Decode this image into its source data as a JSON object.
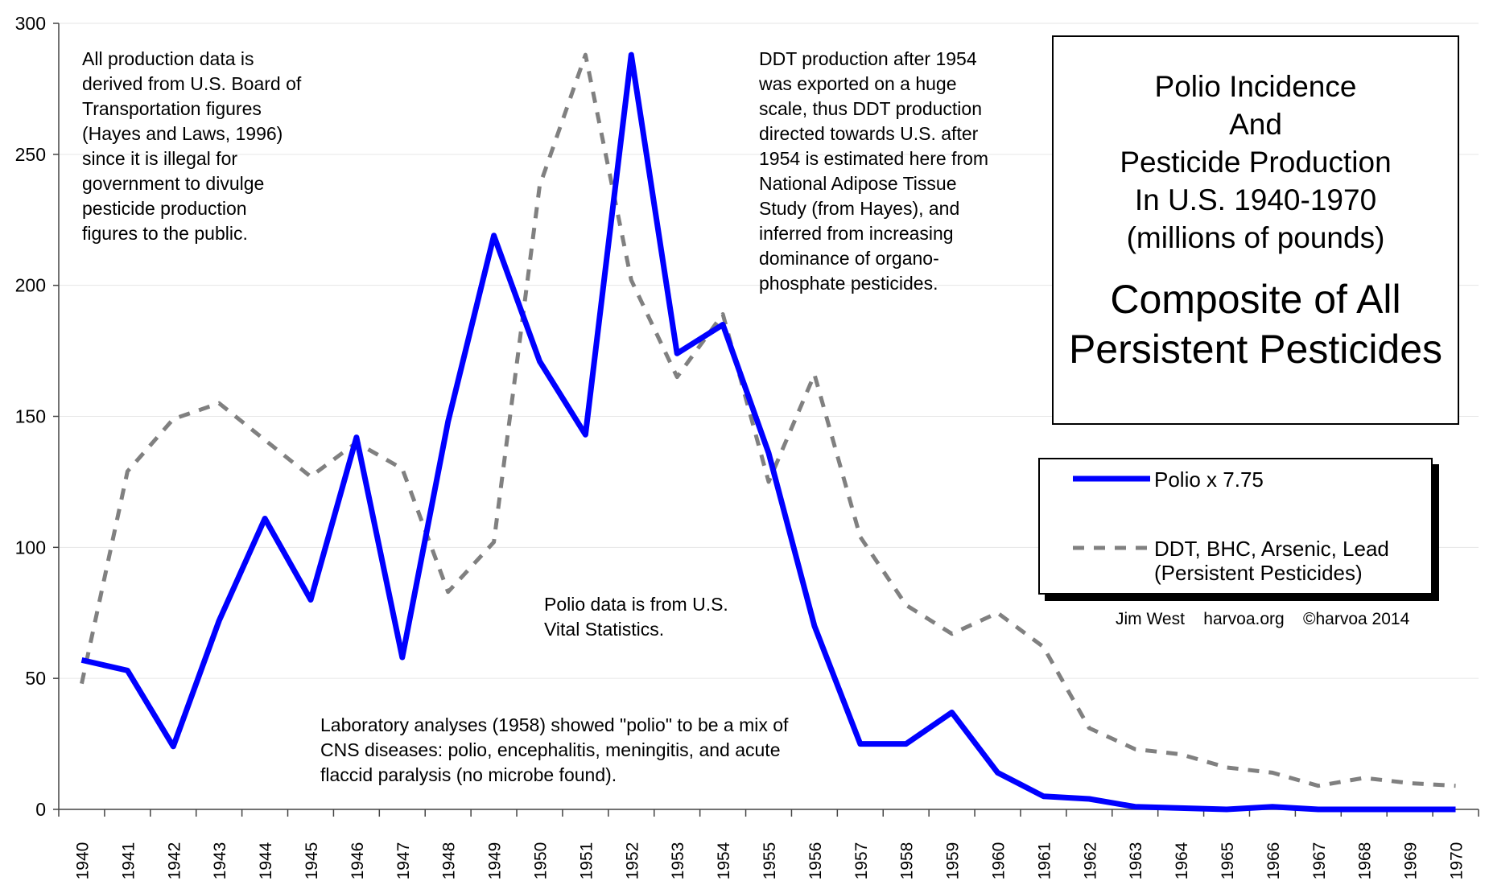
{
  "chart_data": {
    "type": "line",
    "title_lines": [
      "Polio Incidence",
      "And",
      "Pesticide Production",
      "In U.S. 1940-1970",
      "(millions of pounds)"
    ],
    "subtitle_lines": [
      "Composite of All",
      "Persistent Pesticides"
    ],
    "ylim": [
      0,
      300
    ],
    "yticks": [
      "0",
      "50",
      "100",
      "150",
      "200",
      "250",
      "300"
    ],
    "grid": "horizontal",
    "categories": [
      "1940",
      "1941",
      "1942",
      "1943",
      "1944",
      "1945",
      "1946",
      "1947",
      "1948",
      "1949",
      "1950",
      "1951",
      "1952",
      "1953",
      "1954",
      "1955",
      "1956",
      "1957",
      "1958",
      "1959",
      "1960",
      "1961",
      "1962",
      "1963",
      "1964",
      "1965",
      "1966",
      "1967",
      "1968",
      "1969",
      "1970"
    ],
    "series": [
      {
        "name": "Polio x 7.75",
        "style": "solid",
        "color": "#0000ff",
        "values": [
          57,
          53,
          24,
          72,
          111,
          80,
          142,
          58,
          148,
          219,
          171,
          143,
          288,
          174,
          185,
          136,
          70,
          25,
          25,
          37,
          14,
          5,
          4,
          1,
          0.5,
          0,
          1,
          0,
          0,
          0,
          0
        ]
      },
      {
        "name": "DDT, BHC, Arsenic, Lead\n(Persistent Pesticides)",
        "style": "dashed",
        "color": "#808080",
        "values": [
          48,
          129,
          149,
          155,
          141,
          127,
          140,
          130,
          83,
          102,
          238,
          288,
          202,
          165,
          189,
          125,
          166,
          104,
          78,
          67,
          75,
          62,
          31,
          23,
          21,
          16,
          14,
          9,
          12,
          10,
          9
        ]
      }
    ],
    "legend_position": "right"
  },
  "annotations": {
    "production_note": "All production data is\nderived from U.S. Board of\nTransportation figures\n(Hayes and Laws, 1996)\nsince it is illegal for\ngovernment to divulge\npesticide production\nfigures to the public.",
    "ddt_note": "DDT production after 1954\nwas exported on a huge\nscale, thus DDT production\ndirected towards U.S. after\n1954 is estimated here from\nNational Adipose Tissue\nStudy (from Hayes), and\ninferred from increasing\ndominance of organo-\nphosphate pesticides.",
    "polio_source_note": "Polio data is from U.S.\nVital Statistics.",
    "lab_note": "Laboratory analyses (1958) showed \"polio\" to be a mix of\nCNS diseases: polio, encephalitis, meningitis, and acute\nflaccid paralysis (no microbe found)."
  },
  "title_box": {
    "title": "Polio Incidence\nAnd\nPesticide Production\nIn U.S. 1940-1970\n(millions of pounds)",
    "subtitle": "Composite of All\nPersistent Pesticides"
  },
  "legend": {
    "polio_label": "Polio x 7.75",
    "pesticide_label": "DDT, BHC, Arsenic, Lead\n(Persistent Pesticides)"
  },
  "credits": "Jim West    harvoa.org    ©harvoa 2014"
}
